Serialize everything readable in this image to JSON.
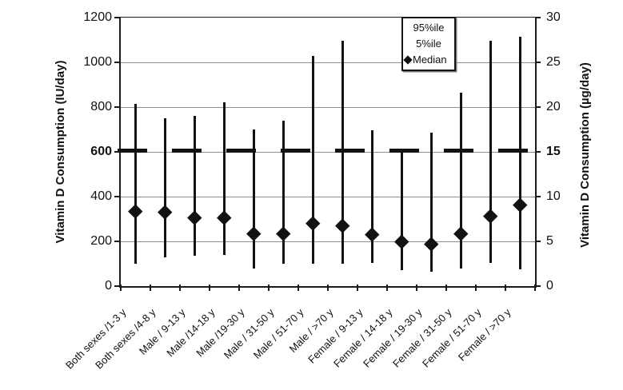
{
  "chart_data": {
    "type": "scatter",
    "subtype": "median-with-5th-95th-percentile-range-bars",
    "title": "",
    "grid": true,
    "ink_color": "#121212",
    "grid_color": "#8f8f8f",
    "y_left": {
      "label": "Vitamin D Consumption (IU/day)",
      "min": 0,
      "max": 1200,
      "step": 200,
      "ticks": [
        0,
        200,
        400,
        600,
        800,
        1000,
        1200
      ],
      "bold_tick": 600
    },
    "y_right": {
      "label": "Vitamin D Consumption (µg/day)",
      "min": 0,
      "max": 30,
      "step": 5,
      "ticks": [
        0,
        5,
        10,
        15,
        20,
        25,
        30
      ],
      "bold_tick": 15
    },
    "categories": [
      "Both sexes /1-3 y",
      "Both sexes /4-8 y",
      "Male / 9-13 y",
      "Male /14-18 y",
      "Male /19-30 y",
      "Male / 31-50 y",
      "Male / 51-70 y",
      "Male / >70 y",
      "Female / 9-13 y",
      "Female / 14-18 y",
      "Female / 19-30 y",
      "Female / 31-50 y",
      "Female / 51-70 y",
      "Female / >70 y"
    ],
    "series": [
      {
        "name": "95%ile",
        "role": "range-top",
        "values": [
          815,
          750,
          760,
          820,
          700,
          740,
          1030,
          1095,
          695,
          615,
          685,
          865,
          1095,
          1115
        ]
      },
      {
        "name": "5%ile",
        "role": "range-bottom",
        "values": [
          100,
          130,
          135,
          140,
          80,
          100,
          100,
          100,
          105,
          70,
          65,
          80,
          105,
          75
        ]
      },
      {
        "name": "Median",
        "role": "point",
        "marker": "diamond",
        "values": [
          335,
          330,
          305,
          305,
          235,
          235,
          280,
          270,
          230,
          200,
          190,
          235,
          315,
          365
        ]
      }
    ],
    "reference_line": {
      "value": 600,
      "value_right_axis": 15,
      "style": "thick-black-dashes"
    },
    "legend": {
      "position": "top-center",
      "items": [
        "95%ile",
        "5%ile",
        "Median"
      ]
    }
  }
}
